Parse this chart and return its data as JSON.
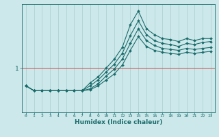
{
  "xlabel": "Humidex (Indice chaleur)",
  "xlabel_fontsize": 6.5,
  "background_color": "#cce8ea",
  "grid_color": "#aacccc",
  "line_color": "#1a6b6b",
  "hline_color": "#cc4444",
  "hline_y": 1.0,
  "xlim": [
    -0.5,
    23.5
  ],
  "ylim": [
    0.55,
    1.65
  ],
  "x": [
    0,
    1,
    2,
    3,
    4,
    5,
    6,
    7,
    8,
    9,
    10,
    11,
    12,
    13,
    14,
    15,
    16,
    17,
    18,
    19,
    20,
    21,
    22,
    23
  ],
  "lines": [
    [
      0.82,
      0.77,
      0.77,
      0.77,
      0.77,
      0.77,
      0.77,
      0.77,
      0.78,
      0.82,
      0.88,
      0.94,
      1.03,
      1.18,
      1.32,
      1.22,
      1.18,
      1.16,
      1.15,
      1.14,
      1.16,
      1.15,
      1.16,
      1.17
    ],
    [
      0.82,
      0.77,
      0.77,
      0.77,
      0.77,
      0.77,
      0.77,
      0.77,
      0.79,
      0.84,
      0.92,
      0.99,
      1.09,
      1.25,
      1.4,
      1.28,
      1.23,
      1.2,
      1.19,
      1.18,
      1.2,
      1.19,
      1.2,
      1.21
    ],
    [
      0.82,
      0.77,
      0.77,
      0.77,
      0.77,
      0.77,
      0.77,
      0.77,
      0.82,
      0.88,
      0.96,
      1.04,
      1.15,
      1.33,
      1.48,
      1.34,
      1.28,
      1.25,
      1.24,
      1.22,
      1.25,
      1.24,
      1.26,
      1.27
    ],
    [
      0.82,
      0.77,
      0.77,
      0.77,
      0.77,
      0.77,
      0.77,
      0.77,
      0.85,
      0.91,
      1.0,
      1.09,
      1.21,
      1.44,
      1.58,
      1.4,
      1.34,
      1.3,
      1.29,
      1.27,
      1.3,
      1.28,
      1.3,
      1.3
    ]
  ],
  "marker": "D",
  "markersize": 2.0,
  "linewidth": 0.8
}
